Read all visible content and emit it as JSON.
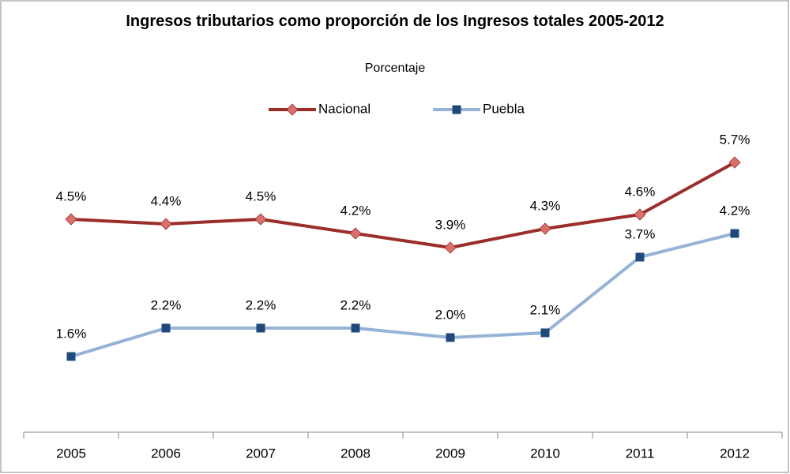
{
  "chart_data": {
    "type": "line",
    "title": "Ingresos tributarios como proporción de los Ingresos totales 2005-2012",
    "subtitle": "Porcentaje",
    "categories": [
      "2005",
      "2006",
      "2007",
      "2008",
      "2009",
      "2010",
      "2011",
      "2012"
    ],
    "series": [
      {
        "name": "Nacional",
        "color": "#9b2d2a",
        "marker_color": "#d9706c",
        "marker": "diamond",
        "values": [
          4.5,
          4.4,
          4.5,
          4.2,
          3.9,
          4.3,
          4.6,
          5.7
        ],
        "value_labels": [
          "4.5%",
          "4.4%",
          "4.5%",
          "4.2%",
          "3.9%",
          "4.3%",
          "4.6%",
          "5.7%"
        ]
      },
      {
        "name": "Puebla",
        "color": "#95b3d7",
        "marker_color": "#1f497d",
        "marker": "square",
        "values": [
          1.6,
          2.2,
          2.2,
          2.2,
          2.0,
          2.1,
          3.7,
          4.2
        ],
        "value_labels": [
          "1.6%",
          "2.2%",
          "2.2%",
          "2.2%",
          "2.0%",
          "2.1%",
          "3.7%",
          "4.2%"
        ]
      }
    ],
    "ylim": [
      0,
      7.5
    ],
    "legend": "top"
  }
}
